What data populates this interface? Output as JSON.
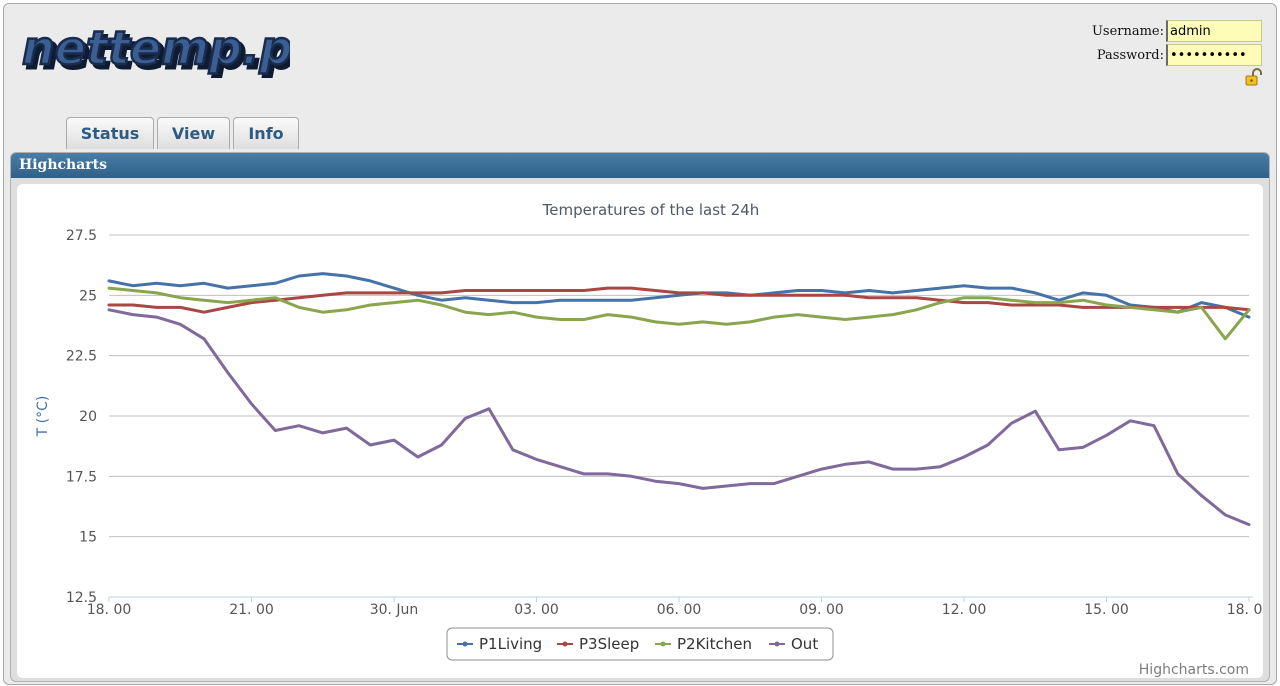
{
  "header": {
    "logo_text": "nettemp.pl",
    "login": {
      "username_label": "Username:",
      "username_value": "admin",
      "password_label": "Password:",
      "password_value": "••••••••••"
    }
  },
  "tabs": [
    {
      "label": "Status"
    },
    {
      "label": "View"
    },
    {
      "label": "Info"
    }
  ],
  "panel": {
    "title": "Highcharts"
  },
  "chart_data": {
    "type": "line",
    "title": "Temperatures of the last 24h",
    "xlabel": "",
    "ylabel": "T (°C)",
    "credits": "Highcharts.com",
    "ylim": [
      12.5,
      27.5
    ],
    "yticks": [
      27.5,
      25,
      22.5,
      20,
      17.5,
      15,
      12.5
    ],
    "ytick_labels": [
      "27.5",
      "25",
      "22.5",
      "20",
      "17.5",
      "15",
      "12.5"
    ],
    "xlim": [
      0,
      24
    ],
    "xticks": [
      0,
      3,
      6,
      9,
      12,
      15,
      18,
      21,
      24
    ],
    "xtick_labels": [
      "18. 00",
      "21. 00",
      "30. Jun",
      "03. 00",
      "06. 00",
      "09. 00",
      "12. 00",
      "15. 00",
      "18. 00"
    ],
    "grid": true,
    "legend_position": "bottom-center",
    "x": [
      0,
      0.5,
      1,
      1.5,
      2,
      2.5,
      3,
      3.5,
      4,
      4.5,
      5,
      5.5,
      6,
      6.5,
      7,
      7.5,
      8,
      8.5,
      9,
      9.5,
      10,
      10.5,
      11,
      11.5,
      12,
      12.5,
      13,
      13.5,
      14,
      14.5,
      15,
      15.5,
      16,
      16.5,
      17,
      17.5,
      18,
      18.5,
      19,
      19.5,
      20,
      20.5,
      21,
      21.5,
      22,
      22.5,
      23,
      23.5,
      24
    ],
    "series": [
      {
        "name": "P1Living",
        "color": "#4572a7",
        "values": [
          25.6,
          25.4,
          25.5,
          25.4,
          25.5,
          25.3,
          25.4,
          25.5,
          25.8,
          25.9,
          25.8,
          25.6,
          25.3,
          25.0,
          24.8,
          24.9,
          24.8,
          24.7,
          24.7,
          24.8,
          24.8,
          24.8,
          24.8,
          24.9,
          25.0,
          25.1,
          25.1,
          25.0,
          25.1,
          25.2,
          25.2,
          25.1,
          25.2,
          25.1,
          25.2,
          25.3,
          25.4,
          25.3,
          25.3,
          25.1,
          24.8,
          25.1,
          25.0,
          24.6,
          24.5,
          24.3,
          24.7,
          24.5,
          24.1
        ]
      },
      {
        "name": "P3Sleep",
        "color": "#aa4643",
        "values": [
          24.6,
          24.6,
          24.5,
          24.5,
          24.3,
          24.5,
          24.7,
          24.8,
          24.9,
          25.0,
          25.1,
          25.1,
          25.1,
          25.1,
          25.1,
          25.2,
          25.2,
          25.2,
          25.2,
          25.2,
          25.2,
          25.3,
          25.3,
          25.2,
          25.1,
          25.1,
          25.0,
          25.0,
          25.0,
          25.0,
          25.0,
          25.0,
          24.9,
          24.9,
          24.9,
          24.8,
          24.7,
          24.7,
          24.6,
          24.6,
          24.6,
          24.5,
          24.5,
          24.5,
          24.5,
          24.5,
          24.5,
          24.5,
          24.4
        ]
      },
      {
        "name": "P2Kitchen",
        "color": "#89a54e",
        "values": [
          25.3,
          25.2,
          25.1,
          24.9,
          24.8,
          24.7,
          24.8,
          24.9,
          24.5,
          24.3,
          24.4,
          24.6,
          24.7,
          24.8,
          24.6,
          24.3,
          24.2,
          24.3,
          24.1,
          24.0,
          24.0,
          24.2,
          24.1,
          23.9,
          23.8,
          23.9,
          23.8,
          23.9,
          24.1,
          24.2,
          24.1,
          24.0,
          24.1,
          24.2,
          24.4,
          24.7,
          24.9,
          24.9,
          24.8,
          24.7,
          24.7,
          24.8,
          24.6,
          24.5,
          24.4,
          24.3,
          24.5,
          23.2,
          24.4
        ]
      },
      {
        "name": "Out",
        "color": "#80699b",
        "values": [
          24.4,
          24.2,
          24.1,
          23.8,
          23.2,
          21.8,
          20.5,
          19.4,
          19.6,
          19.3,
          19.5,
          18.8,
          19.0,
          18.3,
          18.8,
          19.9,
          20.3,
          18.6,
          18.2,
          17.9,
          17.6,
          17.6,
          17.5,
          17.3,
          17.2,
          17.0,
          17.1,
          17.2,
          17.2,
          17.5,
          17.8,
          18.0,
          18.1,
          17.8,
          17.8,
          17.9,
          18.3,
          18.8,
          19.7,
          20.2,
          18.6,
          18.7,
          19.2,
          19.8,
          19.6,
          17.6,
          16.7,
          15.9,
          15.5
        ]
      }
    ]
  }
}
